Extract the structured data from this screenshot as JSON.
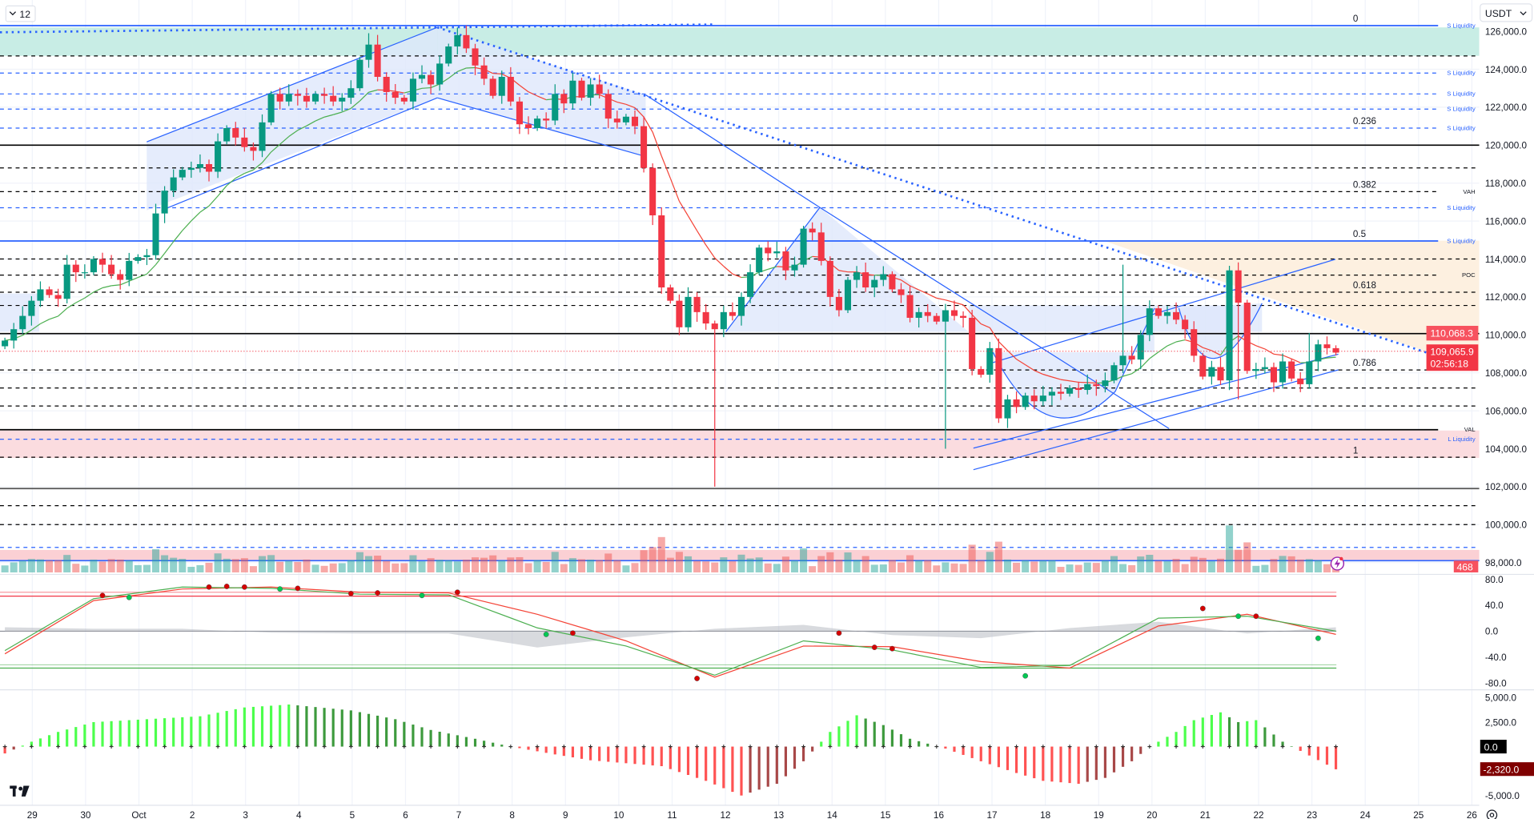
{
  "toolbar": {
    "interval_label": "12",
    "currency": "USDT"
  },
  "colors": {
    "up": "#089981",
    "down": "#f23645",
    "liquidity": "#2962ff",
    "ma_up": "#4caf50",
    "ma_down": "#f44336"
  },
  "price_axis": {
    "ticks": [
      "126,000.0",
      "124,000.0",
      "122,000.0",
      "120,000.0",
      "118,000.0",
      "116,000.0",
      "114,000.0",
      "112,000.0",
      "110,000.0",
      "108,000.0",
      "106,000.0",
      "104,000.0",
      "102,000.0",
      "100,000.0",
      "98,000.0"
    ],
    "tick_values": [
      126000,
      124000,
      122000,
      120000,
      118000,
      116000,
      114000,
      112000,
      110000,
      108000,
      106000,
      104000,
      102000,
      100000,
      98000
    ],
    "level_label": "110,068.3",
    "last_price": "109,065.9",
    "countdown": "02:56:18",
    "volume_label": "468"
  },
  "time_axis": {
    "ticks": [
      "29",
      "30",
      "Oct",
      "2",
      "3",
      "4",
      "5",
      "6",
      "7",
      "8",
      "9",
      "10",
      "11",
      "12",
      "13",
      "14",
      "15",
      "16",
      "17",
      "18",
      "19",
      "20",
      "21",
      "22",
      "23",
      "24",
      "25",
      "26"
    ]
  },
  "levels": [
    {
      "price": 126300,
      "style": "solid",
      "color": "#2962ff",
      "label": "S Liquidity",
      "fib": "0"
    },
    {
      "price": 124700,
      "style": "dash",
      "color": "#000000",
      "label": "",
      "fib": ""
    },
    {
      "price": 123800,
      "style": "dash",
      "color": "#2962ff",
      "label": "S Liquidity",
      "fib": ""
    },
    {
      "price": 122700,
      "style": "dash",
      "color": "#2962ff",
      "label": "S Liquidity",
      "fib": ""
    },
    {
      "price": 121900,
      "style": "dash",
      "color": "#2962ff",
      "label": "S Liquidity",
      "fib": ""
    },
    {
      "price": 120900,
      "style": "dash",
      "color": "#2962ff",
      "label": "S Liquidity",
      "fib": "0.236"
    },
    {
      "price": 120000,
      "style": "solid",
      "color": "#000000",
      "label": "",
      "fib": ""
    },
    {
      "price": 118800,
      "style": "dash",
      "color": "#000000",
      "label": "",
      "fib": ""
    },
    {
      "price": 117550,
      "style": "dash",
      "color": "#000000",
      "label": "VAH",
      "fib": "0.382"
    },
    {
      "price": 116700,
      "style": "dash",
      "color": "#2962ff",
      "label": "S Liquidity",
      "fib": ""
    },
    {
      "price": 114950,
      "style": "solid",
      "color": "#2962ff",
      "label": "S Liquidity",
      "fib": "0.5"
    },
    {
      "price": 114000,
      "style": "dash",
      "color": "#000000",
      "label": "",
      "fib": ""
    },
    {
      "price": 113150,
      "style": "dash",
      "color": "#000000",
      "label": "POC",
      "fib": ""
    },
    {
      "price": 112250,
      "style": "dash",
      "color": "#000000",
      "label": "",
      "fib": "0.618"
    },
    {
      "price": 111550,
      "style": "dash",
      "color": "#000000",
      "label": "",
      "fib": ""
    },
    {
      "price": 110068,
      "style": "solid",
      "color": "#000000",
      "label": "",
      "fib": ""
    },
    {
      "price": 108150,
      "style": "dash",
      "color": "#000000",
      "label": "",
      "fib": "0.786"
    },
    {
      "price": 107200,
      "style": "dash",
      "color": "#000000",
      "label": "",
      "fib": ""
    },
    {
      "price": 106250,
      "style": "dash",
      "color": "#000000",
      "label": "",
      "fib": ""
    },
    {
      "price": 105000,
      "style": "solid",
      "color": "#000000",
      "label": "VAL",
      "fib": ""
    },
    {
      "price": 104500,
      "style": "dash",
      "color": "#2962ff",
      "label": "L Liquidity",
      "fib": ""
    },
    {
      "price": 103550,
      "style": "dash",
      "color": "#000000",
      "label": "",
      "fib": "1"
    },
    {
      "price": 101900,
      "style": "solid",
      "color": "#555555",
      "label": "",
      "fib": ""
    },
    {
      "price": 101000,
      "style": "dash",
      "color": "#000000",
      "label": "",
      "fib": ""
    },
    {
      "price": 100000,
      "style": "dash",
      "color": "#000000",
      "label": "",
      "fib": ""
    },
    {
      "price": 98800,
      "style": "dash",
      "color": "#2962ff",
      "label": "",
      "fib": ""
    },
    {
      "price": 98100,
      "style": "solid",
      "color": "#2962ff",
      "label": "",
      "fib": ""
    }
  ],
  "chart_data": {
    "type": "candlestick",
    "interval": "4H",
    "open_start": 109400,
    "closes": [
      109700,
      110300,
      111000,
      111800,
      112400,
      112100,
      111900,
      113700,
      113300,
      113300,
      114000,
      113700,
      113200,
      112900,
      113900,
      114100,
      114200,
      116400,
      117600,
      118300,
      118700,
      118800,
      119000,
      118600,
      120200,
      120900,
      120400,
      119900,
      119700,
      121200,
      122700,
      122300,
      122700,
      122600,
      122300,
      122700,
      122600,
      122300,
      122500,
      123000,
      124500,
      125300,
      123600,
      122800,
      122500,
      122300,
      123500,
      123700,
      123200,
      124300,
      125200,
      125800,
      125100,
      124200,
      123500,
      122600,
      123600,
      122300,
      121100,
      120900,
      121400,
      121300,
      122700,
      122200,
      123400,
      122500,
      123200,
      122700,
      121400,
      121200,
      121500,
      121000,
      118800,
      116300,
      112500,
      111800,
      110400,
      112000,
      111200,
      110600,
      110300,
      111200,
      111000,
      112000,
      113300,
      114600,
      114300,
      114400,
      113400,
      113700,
      115600,
      115400,
      113900,
      112000,
      111300,
      112900,
      113300,
      112500,
      112900,
      113200,
      112400,
      112100,
      110900,
      111200,
      111000,
      110700,
      111300,
      111000,
      110900,
      108200,
      107900,
      109300,
      105600,
      106600,
      106200,
      106800,
      106500,
      106800,
      107000,
      106900,
      107200,
      107100,
      107400,
      107300,
      107600,
      108400,
      108900,
      108700,
      110000,
      111400,
      111000,
      111200,
      110800,
      110300,
      108900,
      107800,
      108300,
      107600,
      113400,
      111700,
      108100,
      108200,
      108300,
      107500,
      108600,
      107700,
      107400,
      108600,
      109500,
      109300,
      109066
    ],
    "extremes": [
      {
        "i": 51,
        "high": 126200
      },
      {
        "i": 41,
        "high": 125900
      },
      {
        "i": 80,
        "low": 102000
      },
      {
        "i": 106,
        "low": 104000
      },
      {
        "i": 126,
        "high": 113700
      },
      {
        "i": 139,
        "low": 106600
      },
      {
        "i": 147,
        "high": 110100
      }
    ],
    "oscillator": {
      "axis": [
        "80.0",
        "40.0",
        "0.0",
        "-40.0",
        "-80.0"
      ],
      "axis_values": [
        80,
        40,
        0,
        -40,
        -80
      ],
      "bands": [
        60,
        54,
        -52,
        -57
      ],
      "sample_index": [
        0,
        10,
        20,
        30,
        40,
        50,
        60,
        70,
        80,
        90,
        100,
        110,
        120,
        130,
        140,
        150
      ],
      "fast": [
        -30,
        50,
        68,
        66,
        57,
        56,
        5,
        -23,
        -68,
        -15,
        -29,
        -56,
        -53,
        20,
        23,
        0
      ],
      "slow": [
        -35,
        47,
        65,
        68,
        60,
        59,
        26,
        -15,
        -71,
        -23,
        -24,
        -47,
        -57,
        8,
        26,
        -5
      ],
      "crosses": [
        {
          "i": 11,
          "v": 55,
          "c": "red"
        },
        {
          "i": 14,
          "v": 52,
          "c": "green"
        },
        {
          "i": 23,
          "v": 68,
          "c": "red"
        },
        {
          "i": 25,
          "v": 69,
          "c": "red"
        },
        {
          "i": 27,
          "v": 68,
          "c": "red"
        },
        {
          "i": 31,
          "v": 65,
          "c": "green"
        },
        {
          "i": 33,
          "v": 66,
          "c": "red"
        },
        {
          "i": 39,
          "v": 58,
          "c": "red"
        },
        {
          "i": 42,
          "v": 59,
          "c": "red"
        },
        {
          "i": 47,
          "v": 55,
          "c": "green"
        },
        {
          "i": 51,
          "v": 60,
          "c": "red"
        },
        {
          "i": 61,
          "v": -5,
          "c": "green"
        },
        {
          "i": 64,
          "v": -3,
          "c": "red"
        },
        {
          "i": 78,
          "v": -73,
          "c": "red"
        },
        {
          "i": 94,
          "v": -3,
          "c": "red"
        },
        {
          "i": 98,
          "v": -25,
          "c": "red"
        },
        {
          "i": 100,
          "v": -27,
          "c": "red"
        },
        {
          "i": 115,
          "v": -69,
          "c": "green"
        },
        {
          "i": 135,
          "v": 35,
          "c": "red"
        },
        {
          "i": 139,
          "v": 23,
          "c": "green"
        },
        {
          "i": 141,
          "v": 23,
          "c": "red"
        },
        {
          "i": 148,
          "v": -11,
          "c": "green"
        }
      ]
    },
    "macd_hist": {
      "axis": [
        "5,000.0",
        "2,500.0",
        "0.0",
        "-5,000.0"
      ],
      "axis_values": [
        5000,
        2500,
        0,
        -5000
      ],
      "zero_label": "0.0",
      "last_label": "-2,320.0",
      "sample_index": [
        0,
        3,
        6,
        10,
        16,
        22,
        27,
        32,
        39,
        44,
        48,
        53,
        57,
        62,
        66,
        70,
        74,
        79,
        83,
        87,
        90,
        93,
        96,
        99,
        102,
        106,
        110,
        114,
        117,
        121,
        124,
        127,
        129,
        132,
        134,
        137,
        139,
        141,
        144,
        150
      ],
      "values": [
        -700,
        500,
        1500,
        2500,
        2800,
        3100,
        4000,
        4300,
        3700,
        2800,
        1700,
        800,
        0,
        -800,
        -1400,
        -1700,
        -2000,
        -3500,
        -5000,
        -3800,
        -1500,
        1500,
        3200,
        2200,
        800,
        -200,
        -1500,
        -2700,
        -3500,
        -3800,
        -3200,
        -1500,
        0,
        1500,
        2700,
        3500,
        2500,
        2700,
        500,
        -2320
      ]
    }
  }
}
